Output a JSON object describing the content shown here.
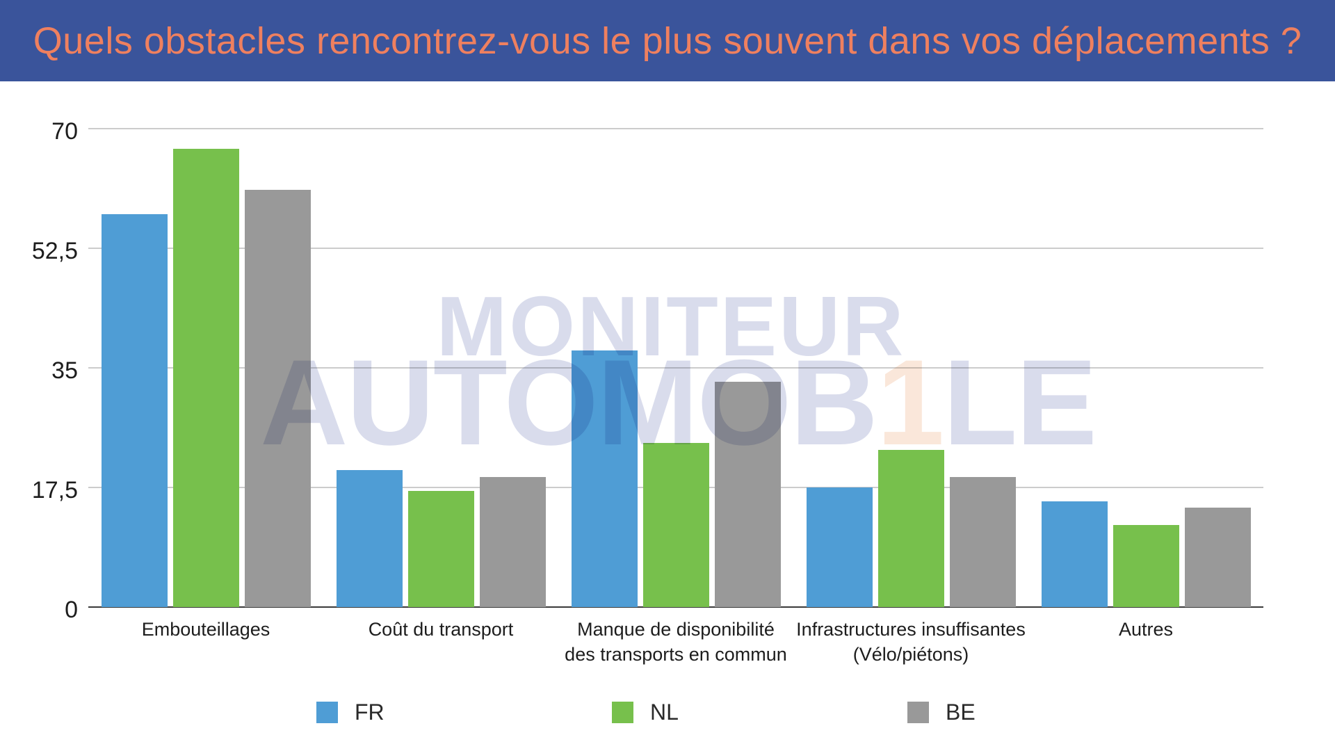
{
  "header": {
    "title": "Quels obstacles rencontrez-vous le plus souvent dans vos déplacements ?",
    "bg_color": "#3A549B",
    "text_color": "#EF805F"
  },
  "chart_data": {
    "type": "bar",
    "title": "Quels obstacles rencontrez-vous le plus souvent dans vos déplacements ?",
    "categories": [
      "Embouteillages",
      "Coût du transport",
      "Manque de disponibilité\ndes transports en commun",
      "Infrastructures insuffisantes\n(Vélo/piétons)",
      "Autres"
    ],
    "series": [
      {
        "name": "FR",
        "color": "#4F9DD5",
        "values": [
          57.5,
          20,
          37.5,
          17.5,
          15.5
        ]
      },
      {
        "name": "NL",
        "color": "#77C04C",
        "values": [
          67,
          17,
          24,
          23,
          12
        ]
      },
      {
        "name": "BE",
        "color": "#999999",
        "values": [
          61,
          19,
          33,
          19,
          14.5
        ]
      }
    ],
    "xlabel": "",
    "ylabel": "",
    "ylim": [
      0,
      70
    ],
    "yticks": [
      {
        "label": "0",
        "value": 0
      },
      {
        "label": "17,5",
        "value": 17.5
      },
      {
        "label": "35",
        "value": 35
      },
      {
        "label": "52,5",
        "value": 52.5
      },
      {
        "label": "70",
        "value": 70
      }
    ],
    "grid": true,
    "legend_position": "bottom",
    "gridline_color": "#CCCCCC",
    "axis_color": "#3A3A3A"
  },
  "watermark": {
    "line1": "MONITEUR",
    "line2_prefix": "AUTOMOB",
    "line2_highlight": "1",
    "line2_suffix": "LE",
    "color": "#D9DCEC",
    "highlight_color": "#FAE7DA"
  }
}
